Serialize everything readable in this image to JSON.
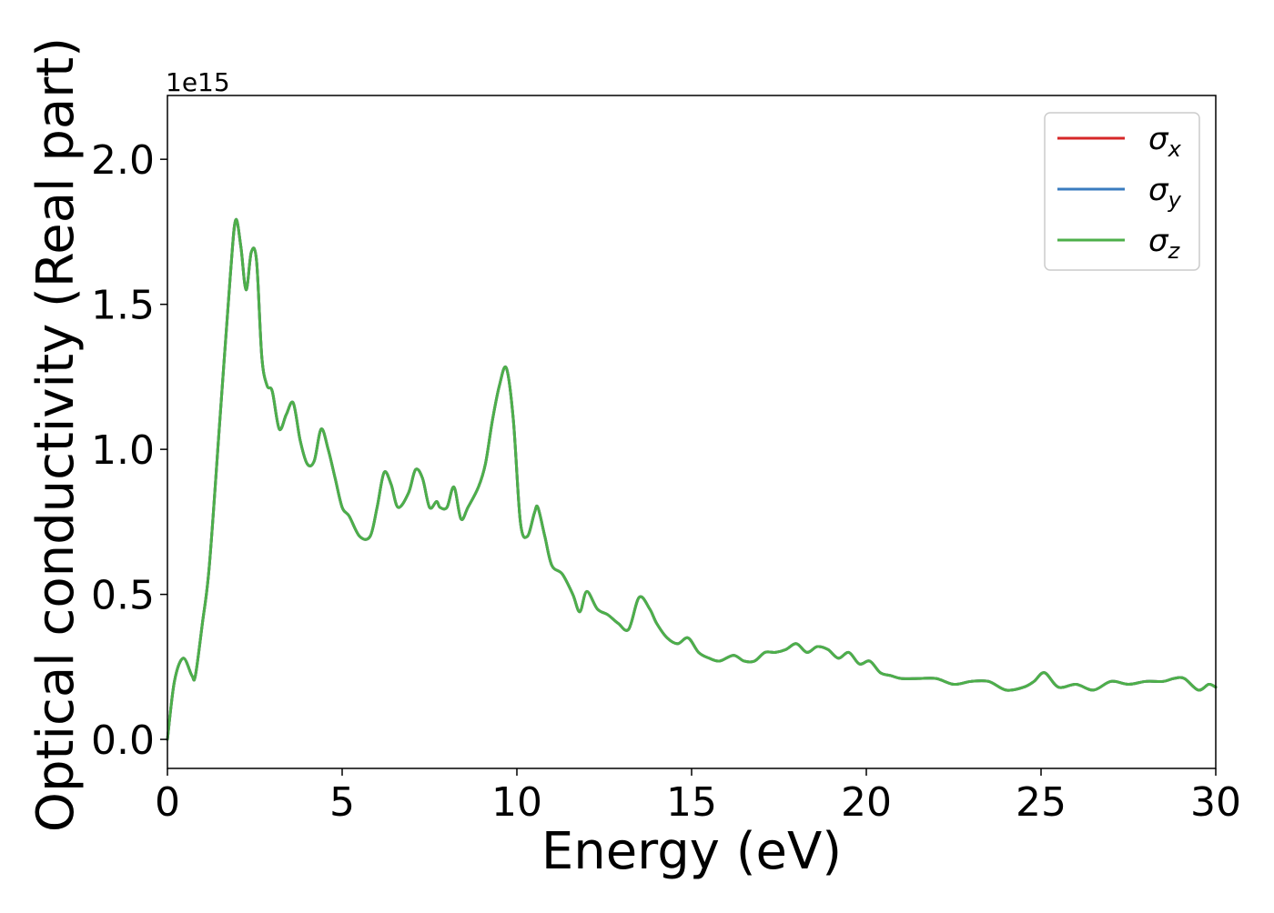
{
  "chart_data": {
    "type": "line",
    "title": "",
    "xlabel": "Energy (eV)",
    "ylabel": "Optical conductivity (Real part)",
    "y_offset_label": "1e15",
    "y_scale_note": "values in units of 1e15",
    "xlim": [
      0,
      30
    ],
    "ylim": [
      -0.1,
      2.22
    ],
    "xticks": [
      0,
      5,
      10,
      15,
      20,
      25,
      30
    ],
    "xtick_labels": [
      "0",
      "5",
      "10",
      "15",
      "20",
      "25",
      "30"
    ],
    "yticks": [
      0.0,
      0.5,
      1.0,
      1.5,
      2.0
    ],
    "ytick_labels": [
      "0.0",
      "0.5",
      "1.0",
      "1.5",
      "2.0"
    ],
    "grid": false,
    "legend_position": "top-right",
    "x": [
      0,
      0.2,
      0.45,
      0.7,
      0.8,
      1.0,
      1.2,
      1.5,
      1.8,
      1.95,
      2.1,
      2.25,
      2.4,
      2.55,
      2.7,
      2.85,
      3.0,
      3.2,
      3.4,
      3.6,
      3.8,
      4.0,
      4.2,
      4.4,
      4.6,
      4.8,
      5.0,
      5.2,
      5.5,
      5.8,
      6.0,
      6.2,
      6.4,
      6.6,
      6.9,
      7.1,
      7.3,
      7.5,
      7.7,
      7.8,
      8.0,
      8.2,
      8.4,
      8.6,
      8.9,
      9.1,
      9.3,
      9.5,
      9.7,
      9.9,
      10.1,
      10.3,
      10.5,
      10.6,
      10.8,
      11.0,
      11.3,
      11.6,
      11.8,
      12.0,
      12.3,
      12.6,
      12.9,
      13.2,
      13.5,
      13.8,
      14.0,
      14.3,
      14.6,
      14.9,
      15.2,
      15.5,
      15.8,
      16.2,
      16.5,
      16.8,
      17.1,
      17.4,
      17.7,
      18.0,
      18.3,
      18.6,
      18.9,
      19.2,
      19.5,
      19.8,
      20.1,
      20.4,
      20.7,
      21.0,
      21.5,
      22.0,
      22.5,
      23.0,
      23.5,
      24.0,
      24.5,
      24.8,
      25.1,
      25.5,
      26.0,
      26.5,
      27.0,
      27.5,
      28.0,
      28.5,
      28.8,
      29.1,
      29.5,
      29.8,
      30.0
    ],
    "series": [
      {
        "name": "σx",
        "color": "#d62728",
        "y": [
          0.0,
          0.2,
          0.28,
          0.22,
          0.22,
          0.4,
          0.6,
          1.1,
          1.6,
          1.79,
          1.7,
          1.55,
          1.68,
          1.65,
          1.32,
          1.22,
          1.2,
          1.07,
          1.12,
          1.16,
          1.03,
          0.95,
          0.96,
          1.07,
          1.0,
          0.9,
          0.8,
          0.77,
          0.7,
          0.7,
          0.8,
          0.92,
          0.88,
          0.8,
          0.85,
          0.93,
          0.9,
          0.8,
          0.82,
          0.8,
          0.8,
          0.87,
          0.76,
          0.8,
          0.87,
          0.95,
          1.1,
          1.22,
          1.28,
          1.1,
          0.75,
          0.7,
          0.78,
          0.8,
          0.7,
          0.6,
          0.57,
          0.5,
          0.44,
          0.51,
          0.45,
          0.43,
          0.4,
          0.38,
          0.49,
          0.45,
          0.4,
          0.35,
          0.33,
          0.35,
          0.3,
          0.28,
          0.27,
          0.29,
          0.27,
          0.27,
          0.3,
          0.3,
          0.31,
          0.33,
          0.3,
          0.32,
          0.31,
          0.28,
          0.3,
          0.26,
          0.27,
          0.23,
          0.22,
          0.21,
          0.21,
          0.21,
          0.19,
          0.2,
          0.2,
          0.17,
          0.18,
          0.2,
          0.23,
          0.18,
          0.19,
          0.17,
          0.2,
          0.19,
          0.2,
          0.2,
          0.21,
          0.21,
          0.17,
          0.19,
          0.18
        ]
      },
      {
        "name": "σy",
        "color": "#3a7bbf",
        "y": [
          0.0,
          0.2,
          0.28,
          0.22,
          0.22,
          0.4,
          0.6,
          1.1,
          1.6,
          1.79,
          1.7,
          1.55,
          1.68,
          1.65,
          1.32,
          1.22,
          1.2,
          1.07,
          1.12,
          1.16,
          1.03,
          0.95,
          0.96,
          1.07,
          1.0,
          0.9,
          0.8,
          0.77,
          0.7,
          0.7,
          0.8,
          0.92,
          0.88,
          0.8,
          0.85,
          0.93,
          0.9,
          0.8,
          0.82,
          0.8,
          0.8,
          0.87,
          0.76,
          0.8,
          0.87,
          0.95,
          1.1,
          1.22,
          1.28,
          1.1,
          0.75,
          0.7,
          0.78,
          0.8,
          0.7,
          0.6,
          0.57,
          0.5,
          0.44,
          0.51,
          0.45,
          0.43,
          0.4,
          0.38,
          0.49,
          0.45,
          0.4,
          0.35,
          0.33,
          0.35,
          0.3,
          0.28,
          0.27,
          0.29,
          0.27,
          0.27,
          0.3,
          0.3,
          0.31,
          0.33,
          0.3,
          0.32,
          0.31,
          0.28,
          0.3,
          0.26,
          0.27,
          0.23,
          0.22,
          0.21,
          0.21,
          0.21,
          0.19,
          0.2,
          0.2,
          0.17,
          0.18,
          0.2,
          0.23,
          0.18,
          0.19,
          0.17,
          0.2,
          0.19,
          0.2,
          0.2,
          0.21,
          0.21,
          0.17,
          0.19,
          0.18
        ]
      },
      {
        "name": "σz",
        "color": "#4daf4a",
        "y": [
          0.0,
          0.2,
          0.28,
          0.22,
          0.22,
          0.4,
          0.6,
          1.1,
          1.6,
          1.79,
          1.7,
          1.55,
          1.68,
          1.65,
          1.32,
          1.22,
          1.2,
          1.07,
          1.12,
          1.16,
          1.03,
          0.95,
          0.96,
          1.07,
          1.0,
          0.9,
          0.8,
          0.77,
          0.7,
          0.7,
          0.8,
          0.92,
          0.88,
          0.8,
          0.85,
          0.93,
          0.9,
          0.8,
          0.82,
          0.8,
          0.8,
          0.87,
          0.76,
          0.8,
          0.87,
          0.95,
          1.1,
          1.22,
          1.28,
          1.1,
          0.75,
          0.7,
          0.78,
          0.8,
          0.7,
          0.6,
          0.57,
          0.5,
          0.44,
          0.51,
          0.45,
          0.43,
          0.4,
          0.38,
          0.49,
          0.45,
          0.4,
          0.35,
          0.33,
          0.35,
          0.3,
          0.28,
          0.27,
          0.29,
          0.27,
          0.27,
          0.3,
          0.3,
          0.31,
          0.33,
          0.3,
          0.32,
          0.31,
          0.28,
          0.3,
          0.26,
          0.27,
          0.23,
          0.22,
          0.21,
          0.21,
          0.21,
          0.19,
          0.2,
          0.2,
          0.17,
          0.18,
          0.2,
          0.23,
          0.18,
          0.19,
          0.17,
          0.2,
          0.19,
          0.2,
          0.2,
          0.21,
          0.21,
          0.17,
          0.19,
          0.18
        ]
      }
    ],
    "legend": [
      {
        "symbol": "σ",
        "subscript": "x",
        "color": "#d62728"
      },
      {
        "symbol": "σ",
        "subscript": "y",
        "color": "#3a7bbf"
      },
      {
        "symbol": "σ",
        "subscript": "z",
        "color": "#4daf4a"
      }
    ]
  }
}
